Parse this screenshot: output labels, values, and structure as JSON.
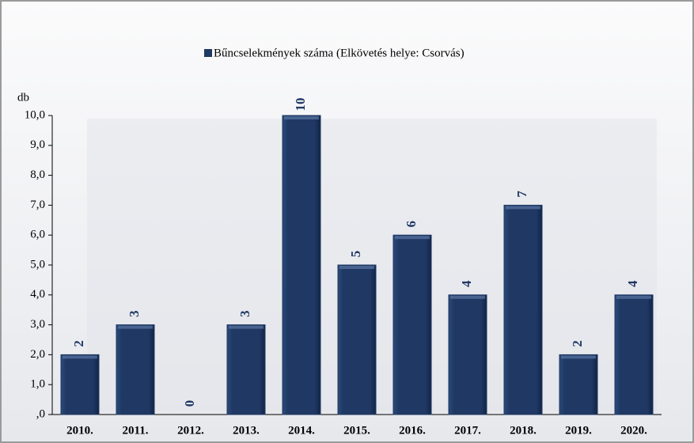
{
  "chart_data": {
    "type": "bar",
    "y_label": "db",
    "categories": [
      "2010.",
      "2011.",
      "2012.",
      "2013.",
      "2014.",
      "2015.",
      "2016.",
      "2017.",
      "2018.",
      "2019.",
      "2020."
    ],
    "series": [
      {
        "name": "Bűncselekmények száma (Elkövetés helye: Csorvás)",
        "color": "#1f3864",
        "values": [
          2,
          3,
          0,
          3,
          10,
          5,
          6,
          4,
          7,
          2,
          4
        ]
      }
    ],
    "ylim": [
      0,
      10
    ],
    "yticks": [
      {
        "value": 0,
        "label": ",0"
      },
      {
        "value": 1,
        "label": "1,0"
      },
      {
        "value": 2,
        "label": "2,0"
      },
      {
        "value": 3,
        "label": "3,0"
      },
      {
        "value": 4,
        "label": "4,0"
      },
      {
        "value": 5,
        "label": "5,0"
      },
      {
        "value": 6,
        "label": "6,0"
      },
      {
        "value": 7,
        "label": "7,0"
      },
      {
        "value": 8,
        "label": "8,0"
      },
      {
        "value": 9,
        "label": "9,0"
      },
      {
        "value": 10,
        "label": "10,0"
      }
    ],
    "grid": false
  }
}
